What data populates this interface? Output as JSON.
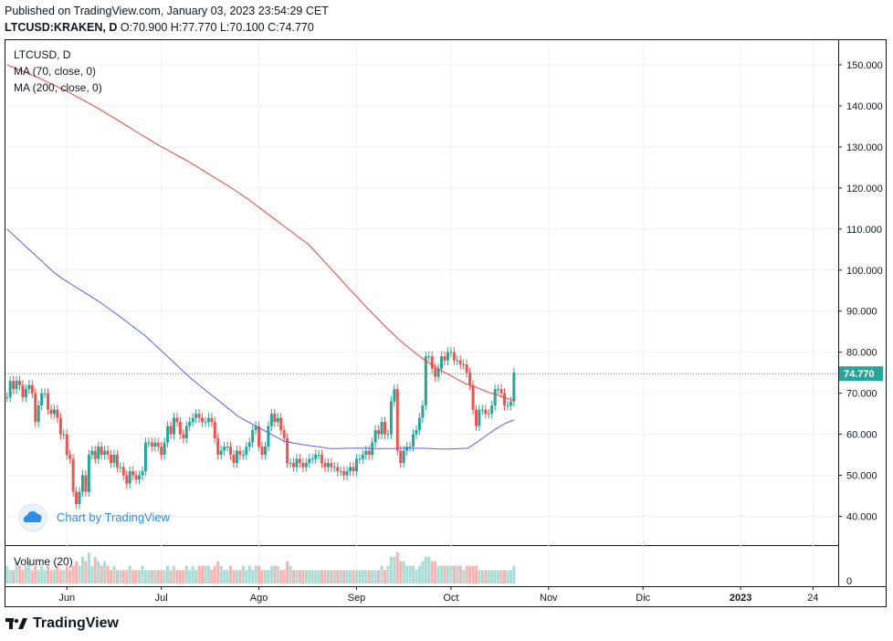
{
  "header": {
    "published": "Published on TradingView.com, January 03, 2023 23:54:29 CET",
    "symbol": "LTCUSD:KRAKEN, D",
    "ohlc": "O:70.900 H:77.770 L:70.100 C:74.770"
  },
  "legend": {
    "symbol": "LTCUSD, D",
    "ma70": "MA (70, close, 0)",
    "ma200": "MA (200, close, 0)",
    "volume": "Volume (20)"
  },
  "watermark": "Chart by TradingView",
  "footer_brand": "TradingView",
  "last_price_label": "74.770",
  "volume_axis_label": "0",
  "colors": {
    "up": "#26a69a",
    "down": "#ef5350",
    "ma70": "#f44336",
    "ma200": "#5b5ef0",
    "price_line": "#26a69a",
    "grid": "#eef0f4",
    "axis": "#131722"
  },
  "chart_data": {
    "type": "candlestick",
    "y_ticks": [
      "40.000",
      "50.000",
      "60.000",
      "70.000",
      "80.000",
      "90.000",
      "100.000",
      "110.000",
      "120.000",
      "130.000",
      "140.000",
      "150.000"
    ],
    "ylim": [
      33,
      156
    ],
    "x_ticks": [
      "Jun",
      "Jul",
      "Ago",
      "Sep",
      "Oct",
      "Nov",
      "Dic",
      "2023",
      "24"
    ],
    "x_tick_days": [
      19,
      49,
      80,
      111,
      141,
      172,
      202,
      233,
      256
    ],
    "xlim": [
      -0.5,
      264
    ],
    "start_day": 0,
    "last_close": 74.77,
    "closes": [
      69,
      73,
      71,
      73,
      72,
      69,
      71,
      72,
      70,
      63,
      67,
      70,
      70,
      66,
      65,
      66,
      64,
      60,
      60,
      55,
      54,
      46,
      43,
      46,
      50,
      46,
      55,
      56,
      54,
      57,
      55,
      56,
      55,
      53,
      55,
      52,
      52,
      50,
      48,
      51,
      50,
      49,
      50,
      51,
      58,
      58,
      57,
      58,
      57,
      55,
      58,
      62,
      60,
      64,
      63,
      60,
      59,
      62,
      63,
      64,
      65,
      64,
      63,
      63,
      64,
      63,
      59,
      55,
      56,
      57,
      57,
      55,
      53,
      56,
      55,
      55,
      57,
      58,
      61,
      62,
      57,
      55,
      57,
      62,
      65,
      63,
      64,
      61,
      59,
      53,
      53,
      52,
      54,
      53,
      52,
      53,
      54,
      54,
      55,
      55,
      53,
      52,
      53,
      52,
      52,
      51,
      51,
      50,
      51,
      52,
      51,
      54,
      54,
      55,
      56,
      55,
      58,
      61,
      60,
      63,
      60,
      60,
      68,
      71,
      56,
      53,
      56,
      57,
      57,
      60,
      61,
      64,
      67,
      79,
      79,
      76,
      74,
      76,
      79,
      78,
      80,
      80,
      78,
      78,
      77,
      77,
      75,
      72,
      66,
      62,
      66,
      66,
      65,
      65,
      67,
      71,
      71,
      70,
      67,
      67,
      68,
      75
    ],
    "ma70_start": 150,
    "ma70": [
      150,
      149.4,
      148.8,
      148.2,
      147.6,
      147,
      146.3,
      145.6,
      144.9,
      144.2,
      143.5,
      142.7,
      141.9,
      141.1,
      140.3,
      139.5,
      138.6,
      137.7,
      136.8,
      135.9,
      135,
      134.1,
      133.2,
      132.3,
      131.4,
      130.5,
      129.7,
      128.9,
      128.1,
      127.3,
      126.5,
      125.6,
      124.7,
      123.8,
      122.9,
      122,
      121.1,
      120.2,
      119.2,
      118.2,
      117.2,
      116.1,
      115,
      113.9,
      112.8,
      111.7,
      110.6,
      109.5,
      108.4,
      107.3,
      106.2,
      104.6,
      103,
      101.4,
      99.8,
      98.2,
      96.6,
      95,
      93.4,
      91.8,
      90.3,
      88.8,
      87.3,
      85.8,
      84.4,
      83,
      81.8,
      80.6,
      79.4,
      78.3,
      77.3,
      76.4,
      75.5,
      74.7,
      73.9,
      73.1,
      72.3,
      71.8,
      71.3,
      70.7,
      70.1,
      69.7,
      69.2,
      68.7,
      68.2
    ],
    "ma200": [
      110,
      107.9,
      105.8,
      103.8,
      101.7,
      99.6,
      97.9,
      96.5,
      95.1,
      93.7,
      92.3,
      90.7,
      89.1,
      87.4,
      85.7,
      84,
      81.9,
      79.8,
      77.7,
      75.6,
      73.5,
      71.7,
      69.9,
      68.1,
      66.3,
      64.5,
      63.2,
      62,
      60.8,
      59.6,
      58.4,
      57.9,
      57.5,
      57.2,
      56.9,
      56.5,
      56.5,
      56.6,
      56.6,
      56.6,
      56.5,
      56.5,
      56.5,
      56.6,
      56.6,
      56.6,
      56.5,
      56.4,
      56.4,
      56.5,
      56.6,
      58.1,
      59.7,
      61.3,
      62.6,
      63.5
    ],
    "volumes": [
      4,
      3,
      3,
      5,
      4,
      3,
      4,
      5,
      3,
      4,
      3,
      4,
      3,
      4,
      3,
      3,
      4,
      3,
      3,
      4,
      3,
      4,
      5,
      4,
      6,
      5,
      7,
      4,
      6,
      5,
      4,
      5,
      4,
      3,
      4,
      3,
      3,
      3,
      3,
      4,
      3,
      3,
      3,
      4,
      3,
      3,
      3,
      3,
      3,
      3,
      3,
      4,
      3,
      4,
      3,
      3,
      3,
      4,
      3,
      4,
      3,
      4,
      4,
      4,
      4,
      3,
      4,
      5,
      4,
      3,
      3,
      4,
      3,
      3,
      3,
      4,
      3,
      4,
      3,
      4,
      4,
      3,
      3,
      3,
      4,
      4,
      4,
      3,
      3,
      5,
      4,
      3,
      3,
      3,
      3,
      3,
      3,
      3,
      3,
      3,
      3,
      3,
      3,
      3,
      3,
      3,
      3,
      3,
      3,
      3,
      3,
      3,
      3,
      3,
      3,
      3,
      3,
      3,
      3,
      4,
      3,
      4,
      6,
      6,
      7,
      5,
      5,
      4,
      4,
      4,
      3,
      4,
      5,
      6,
      6,
      5,
      5,
      4,
      4,
      4,
      4,
      4,
      4,
      4,
      4,
      3,
      4,
      4,
      4,
      4,
      3,
      3,
      3,
      3,
      3,
      3,
      3,
      3,
      3,
      3,
      3,
      4
    ],
    "volume_max": 8
  }
}
